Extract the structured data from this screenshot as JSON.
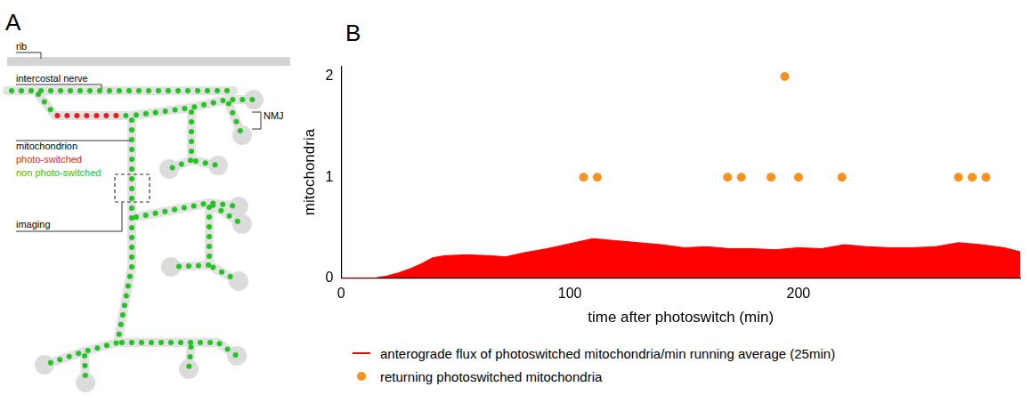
{
  "diagram": {
    "panel_label": "A",
    "labels": {
      "rib": "rib",
      "nerve": "intercostal nerve",
      "mitochondrion": "mitochondrion",
      "photo_switched": "photo-switched",
      "non_photo_switched": "non photo-switched",
      "imaging": "imaging",
      "nmj": "NMJ"
    },
    "colors": {
      "photo_switched": "#ee1c1c",
      "non_photo_switched": "#22c422"
    }
  },
  "chart_data": {
    "type": "line",
    "panel_label": "B",
    "x_label": "time after photoswitch (min)",
    "y_label": "mitochondria",
    "xlim": [
      0,
      297
    ],
    "xticks": [
      0,
      100,
      200
    ],
    "ylim": [
      0,
      2.1
    ],
    "yticks": [
      0,
      1,
      2
    ],
    "grid": false,
    "legend": "bottom",
    "series": [
      {
        "name": "anterograde flux of photoswitched mitochondria/min running average (25min)",
        "type": "area",
        "color": "#ff0000",
        "x": [
          0,
          10,
          15,
          20,
          25,
          30,
          35,
          40,
          45,
          55,
          65,
          72,
          80,
          90,
          100,
          110,
          120,
          130,
          140,
          150,
          160,
          170,
          180,
          190,
          200,
          210,
          220,
          230,
          240,
          250,
          260,
          270,
          280,
          290,
          297
        ],
        "values": [
          0,
          0,
          0,
          0.02,
          0.05,
          0.09,
          0.14,
          0.2,
          0.22,
          0.23,
          0.22,
          0.21,
          0.25,
          0.29,
          0.34,
          0.39,
          0.37,
          0.35,
          0.33,
          0.3,
          0.31,
          0.29,
          0.29,
          0.28,
          0.3,
          0.29,
          0.33,
          0.31,
          0.3,
          0.3,
          0.31,
          0.35,
          0.33,
          0.3,
          0.26
        ]
      },
      {
        "name": "returning  photoswitched mitochondria",
        "type": "scatter",
        "marker": "circle",
        "color": "#f7931e",
        "x": [
          106,
          112,
          169,
          175,
          188,
          194,
          200,
          219,
          270,
          276,
          282
        ],
        "values": [
          1,
          1,
          1,
          1,
          1,
          2,
          1,
          1,
          1,
          1,
          1
        ]
      }
    ]
  }
}
